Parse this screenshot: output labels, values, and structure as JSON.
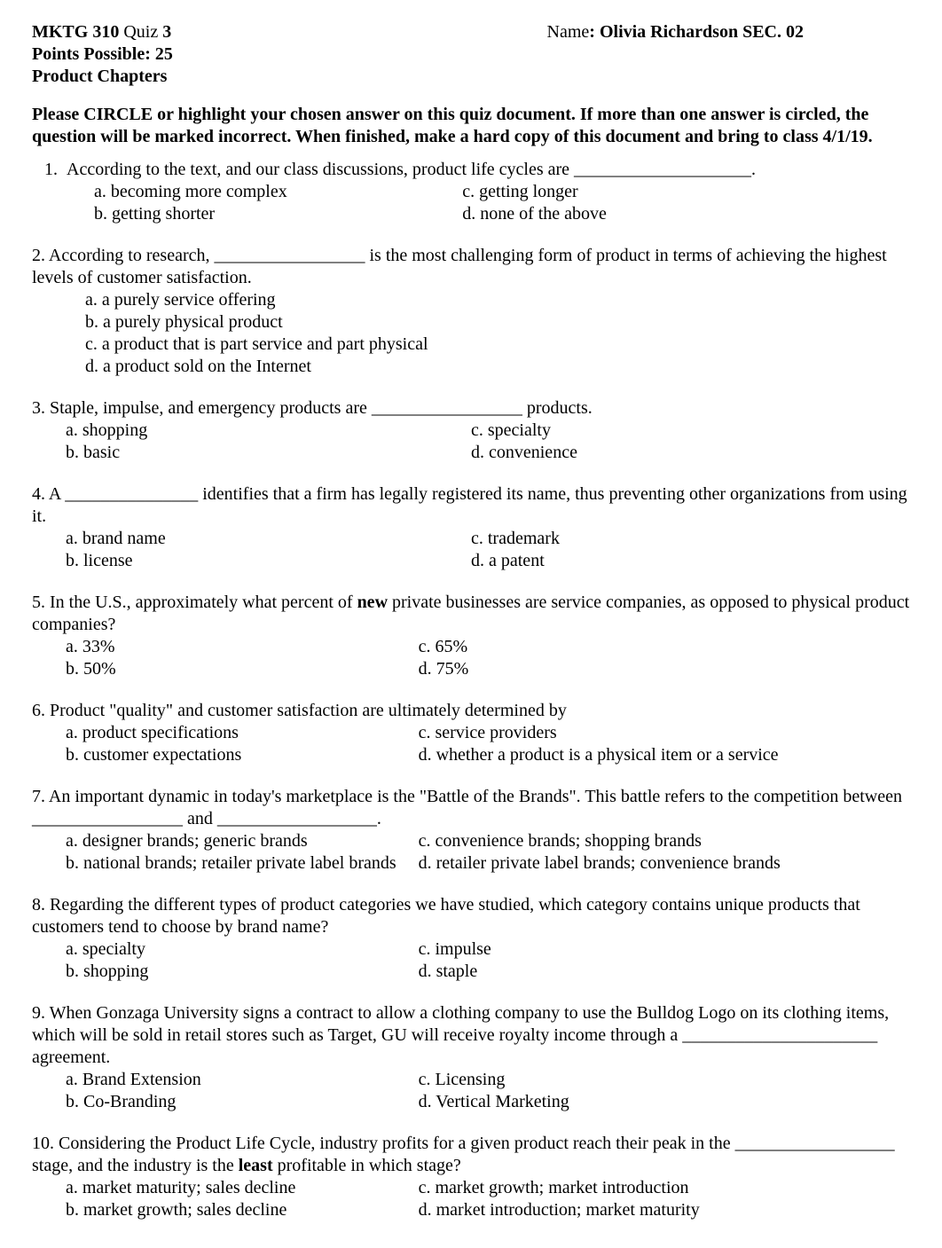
{
  "background_color": "#ffffff",
  "text_color": "#000000",
  "font_family": "Times New Roman",
  "base_font_size_pt": 12,
  "header": {
    "course_quiz_prefix": "MKTG 310 ",
    "quiz_word": "Quiz ",
    "quiz_number": "3",
    "name_label": "Name",
    "name_sep": ": ",
    "student_name": "Olivia Richardson   SEC. 02",
    "points_line": "Points Possible:  25",
    "chapters_line": "Product Chapters"
  },
  "instructions": "Please CIRCLE or highlight your chosen answer on this quiz document.  If more than one answer is circled, the question will be marked incorrect.  When finished, make a hard copy of this document and bring to class 4/1/19.",
  "q1": {
    "stem_num": "1.",
    "stem": "According to the text, and our class discussions, product life cycles are ____________________.",
    "a": "a.    becoming more complex",
    "b": "b.    getting shorter",
    "c": "c.  getting longer",
    "d": "d.  none of the above"
  },
  "q2": {
    "stem": "2.  According to research, _________________ is the most challenging form of product in terms of achieving the highest levels of customer satisfaction.",
    "a": "a. a purely service offering",
    "b": "b. a purely physical product",
    "c": "c. a product that is part service and part physical",
    "d": "d. a product sold on the Internet"
  },
  "q3": {
    "stem": "3. Staple, impulse, and emergency products are _________________ products.",
    "a": "a. shopping",
    "b": "b. basic",
    "c": "c.  specialty",
    "d": "d.  convenience"
  },
  "q4": {
    "stem": " 4. A _______________ identifies that a firm has legally registered its name, thus preventing other organizations from using it.",
    "a": "a. brand name",
    "b": "b. license",
    "c": "c. trademark",
    "d": "d. a patent"
  },
  "q5": {
    "stem_pre": " 5.  In the U.S., approximately what percent of ",
    "stem_bold": "new",
    "stem_post": " private businesses are service companies, as opposed to physical product companies?",
    "a": "a. 33%",
    "b": "b. 50%",
    "c": "c.  65%",
    "d": "d.  75%"
  },
  "q6": {
    "stem": " 6.  Product \"quality\" and customer satisfaction are ultimately determined by",
    "a": "a. product specifications",
    "b": "b. customer expectations",
    "c": "c.  service providers",
    "d": "d.  whether a product is a physical item or a service"
  },
  "q7": {
    "stem": " 7.  An important dynamic in today's marketplace is the \"Battle of the Brands\". This battle refers to the competition between _________________ and __________________.",
    "a": "a. designer brands;  generic brands",
    "b": "b. national brands;  retailer private label brands",
    "c": "c. convenience brands; shopping brands",
    "d": "d.  retailer private label brands; convenience brands"
  },
  "q8": {
    "stem": " 8. Regarding the different types of product categories we have studied, which category contains unique products that  customers tend to choose by brand name?",
    "a": "a. specialty",
    "b": "b. shopping",
    "c": "c.  impulse",
    "d": "d.  staple"
  },
  "q9": {
    "stem": "  9.  When Gonzaga University signs a contract to allow a clothing company to use the Bulldog Logo on its clothing items, which will be sold in retail stores such as Target, GU will receive royalty income through a ______________________ agreement.",
    "a": "a. Brand Extension",
    "b": "b. Co-Branding",
    "c": "c.  Licensing",
    "d": "d.  Vertical Marketing"
  },
  "q10": {
    "stem_pre": "10.  Considering the Product Life Cycle, industry profits for a given product reach their peak in the __________________ stage, and the industry is the ",
    "stem_bold": "least",
    "stem_post": " profitable in which stage?",
    "a": "a. market maturity; sales decline",
    "b": "b. market growth; sales decline",
    "c": "c.  market growth; market introduction",
    "d": "d.  market introduction; market maturity"
  }
}
